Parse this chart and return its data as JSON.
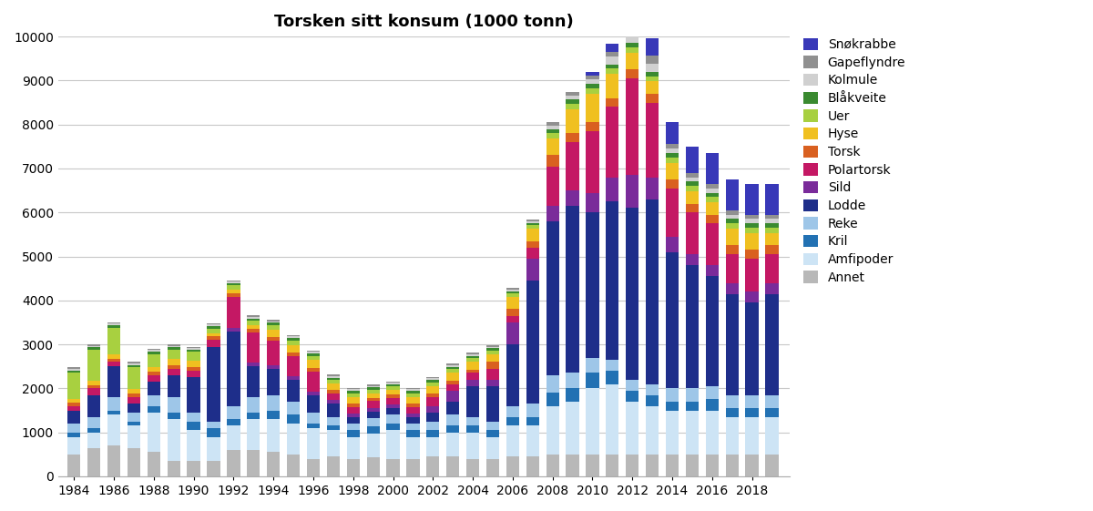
{
  "title": "Torsken sitt konsum (1000 tonn)",
  "years": [
    1984,
    1985,
    1986,
    1987,
    1988,
    1989,
    1990,
    1991,
    1992,
    1993,
    1994,
    1995,
    1996,
    1997,
    1998,
    1999,
    2000,
    2001,
    2002,
    2003,
    2004,
    2005,
    2006,
    2007,
    2008,
    2009,
    2010,
    2011,
    2012,
    2013,
    2014,
    2015,
    2016,
    2017,
    2018,
    2019
  ],
  "categories": [
    "Annet",
    "Amfipoder",
    "Kril",
    "Reke",
    "Lodde",
    "Sild",
    "Polartorsk",
    "Torsk",
    "Hyse",
    "Uer",
    "Blåkveite",
    "Kolmule",
    "Gapeflyndre",
    "Snøkrabbe"
  ],
  "colors": [
    "#b8b8b8",
    "#cde4f5",
    "#2271b3",
    "#9ec6e8",
    "#1e2e8a",
    "#7a2b9a",
    "#c41864",
    "#d96020",
    "#f0c020",
    "#a8d040",
    "#3a8a30",
    "#d0d0d0",
    "#909090",
    "#3838b8"
  ],
  "data": {
    "Annet": [
      500,
      650,
      700,
      650,
      550,
      350,
      350,
      350,
      600,
      600,
      550,
      500,
      400,
      450,
      400,
      430,
      400,
      400,
      450,
      450,
      400,
      400,
      450,
      450,
      500,
      500,
      500,
      500,
      500,
      500,
      500,
      500,
      500,
      500,
      500,
      500
    ],
    "Amfipoder": [
      400,
      350,
      700,
      500,
      900,
      950,
      700,
      550,
      550,
      700,
      750,
      700,
      700,
      600,
      500,
      550,
      650,
      500,
      450,
      550,
      600,
      500,
      700,
      700,
      1100,
      1200,
      1500,
      1600,
      1200,
      1100,
      1000,
      1000,
      1000,
      850,
      850,
      850
    ],
    "Kril": [
      100,
      100,
      100,
      100,
      150,
      150,
      200,
      200,
      150,
      150,
      200,
      200,
      100,
      100,
      150,
      150,
      150,
      150,
      150,
      150,
      150,
      150,
      200,
      200,
      300,
      300,
      350,
      300,
      250,
      250,
      200,
      200,
      250,
      200,
      200,
      200
    ],
    "Reke": [
      200,
      250,
      300,
      200,
      250,
      350,
      200,
      150,
      300,
      350,
      350,
      300,
      250,
      200,
      150,
      200,
      200,
      150,
      200,
      250,
      200,
      200,
      250,
      300,
      400,
      350,
      350,
      250,
      250,
      250,
      300,
      300,
      300,
      300,
      300,
      300
    ],
    "Lodde": [
      300,
      500,
      700,
      200,
      300,
      500,
      800,
      1700,
      1700,
      700,
      600,
      500,
      400,
      300,
      150,
      150,
      150,
      150,
      200,
      300,
      700,
      800,
      1400,
      2800,
      3500,
      3800,
      3300,
      3600,
      3900,
      4200,
      3100,
      2800,
      2500,
      2300,
      2100,
      2300
    ],
    "Sild": [
      0,
      0,
      0,
      0,
      0,
      0,
      0,
      0,
      80,
      80,
      80,
      80,
      80,
      80,
      80,
      80,
      80,
      80,
      150,
      250,
      150,
      150,
      500,
      500,
      350,
      350,
      450,
      550,
      750,
      500,
      350,
      250,
      250,
      250,
      250,
      250
    ],
    "Polartorsk": [
      100,
      150,
      100,
      150,
      150,
      150,
      150,
      150,
      700,
      700,
      550,
      450,
      450,
      150,
      150,
      150,
      150,
      150,
      200,
      150,
      150,
      250,
      150,
      250,
      900,
      1100,
      1400,
      1600,
      2200,
      1700,
      1100,
      950,
      950,
      650,
      750,
      650
    ],
    "Torsk": [
      80,
      80,
      80,
      80,
      80,
      80,
      80,
      80,
      80,
      80,
      80,
      80,
      80,
      80,
      80,
      80,
      80,
      80,
      80,
      80,
      80,
      150,
      150,
      150,
      250,
      200,
      200,
      200,
      200,
      200,
      200,
      200,
      200,
      200,
      200,
      200
    ],
    "Hyse": [
      80,
      100,
      100,
      100,
      100,
      150,
      150,
      80,
      80,
      80,
      180,
      180,
      180,
      150,
      150,
      100,
      100,
      150,
      180,
      180,
      180,
      180,
      280,
      280,
      380,
      550,
      650,
      550,
      380,
      280,
      380,
      280,
      280,
      380,
      380,
      280
    ],
    "Uer": [
      600,
      700,
      600,
      500,
      300,
      200,
      200,
      100,
      100,
      100,
      100,
      100,
      100,
      80,
      80,
      80,
      80,
      80,
      80,
      80,
      80,
      80,
      80,
      80,
      120,
      120,
      120,
      120,
      120,
      120,
      120,
      120,
      120,
      120,
      120,
      120
    ],
    "Blåkveite": [
      50,
      50,
      50,
      50,
      50,
      50,
      50,
      50,
      50,
      50,
      50,
      50,
      50,
      50,
      50,
      50,
      50,
      50,
      50,
      50,
      50,
      50,
      50,
      50,
      100,
      100,
      100,
      100,
      100,
      100,
      100,
      100,
      100,
      100,
      100,
      100
    ],
    "Kolmule": [
      40,
      40,
      40,
      40,
      40,
      40,
      40,
      40,
      40,
      40,
      40,
      40,
      40,
      40,
      40,
      40,
      40,
      40,
      40,
      40,
      40,
      40,
      40,
      40,
      80,
      80,
      100,
      180,
      180,
      180,
      100,
      100,
      100,
      100,
      100,
      100
    ],
    "Gapeflyndre": [
      30,
      30,
      30,
      30,
      30,
      30,
      30,
      30,
      30,
      30,
      30,
      30,
      30,
      30,
      30,
      30,
      30,
      30,
      30,
      30,
      30,
      30,
      30,
      30,
      80,
      80,
      100,
      100,
      180,
      180,
      100,
      100,
      100,
      100,
      100,
      100
    ],
    "Snøkrabbe": [
      0,
      0,
      0,
      0,
      0,
      0,
      0,
      0,
      0,
      0,
      0,
      0,
      0,
      0,
      0,
      0,
      0,
      0,
      0,
      0,
      0,
      0,
      0,
      0,
      0,
      0,
      80,
      180,
      300,
      400,
      500,
      600,
      700,
      700,
      700,
      700
    ]
  },
  "ylim": [
    0,
    10000
  ],
  "yticks": [
    0,
    1000,
    2000,
    3000,
    4000,
    5000,
    6000,
    7000,
    8000,
    9000,
    10000
  ],
  "xticks": [
    1984,
    1986,
    1988,
    1990,
    1992,
    1994,
    1996,
    1998,
    2000,
    2002,
    2004,
    2006,
    2008,
    2010,
    2012,
    2014,
    2016,
    2018
  ],
  "bar_width": 0.65,
  "xlim": [
    1983.2,
    2019.9
  ],
  "background_color": "#ffffff",
  "grid_color": "#c8c8c8",
  "title_fontsize": 13,
  "tick_fontsize": 10,
  "legend_fontsize": 10
}
